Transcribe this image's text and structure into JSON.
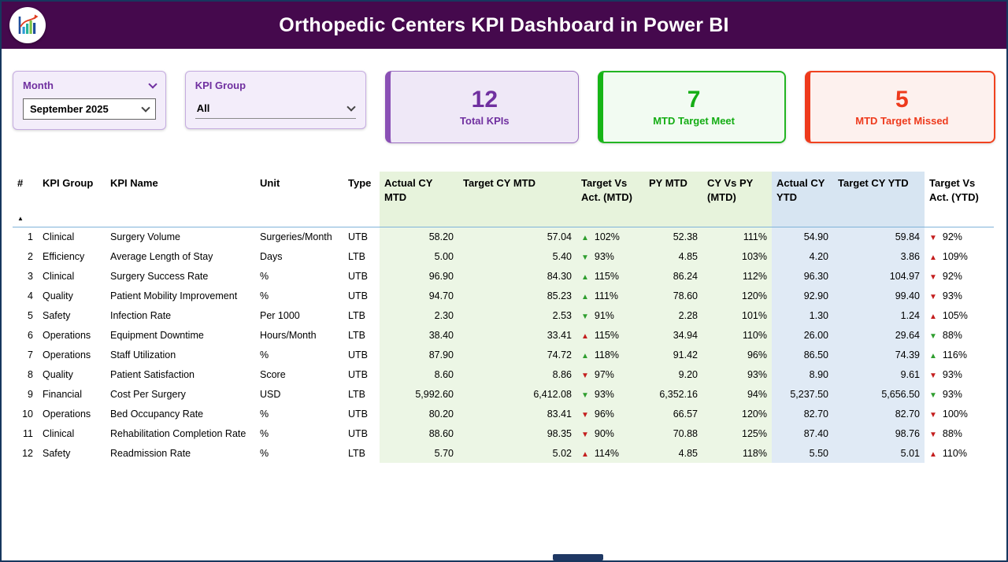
{
  "header": {
    "title": "Orthopedic Centers KPI Dashboard in Power BI"
  },
  "filters": {
    "month": {
      "label": "Month",
      "value": "September 2025"
    },
    "kpi_group": {
      "label": "KPI Group",
      "value": "All"
    }
  },
  "cards": [
    {
      "value": "12",
      "label": "Total KPIs",
      "accent": "#7030a0"
    },
    {
      "value": "7",
      "label": "MTD Target Meet",
      "accent": "#14ad14"
    },
    {
      "value": "5",
      "label": "MTD Target Missed",
      "accent": "#ee3a1c"
    }
  ],
  "colors": {
    "header_bg": "#45094d",
    "purple_accent": "#7030a0",
    "green_accent": "#14ad14",
    "red_accent": "#ee3a1c",
    "table_green_col": "#ecf6e5",
    "table_blue_col": "#e0eaf5",
    "arrow_good": "#2e9e2e",
    "arrow_bad": "#c41e1e"
  },
  "table": {
    "columns": [
      {
        "key": "num",
        "label": "#",
        "align": "right",
        "tint": "none",
        "type": "text",
        "sort": "asc"
      },
      {
        "key": "group",
        "label": "KPI Group",
        "align": "left",
        "tint": "none",
        "type": "text"
      },
      {
        "key": "name",
        "label": "KPI Name",
        "align": "left",
        "tint": "none",
        "type": "text"
      },
      {
        "key": "unit",
        "label": "Unit",
        "align": "left",
        "tint": "none",
        "type": "text"
      },
      {
        "key": "type",
        "label": "Type",
        "align": "left",
        "tint": "none",
        "type": "text"
      },
      {
        "key": "actual_mtd",
        "label": "Actual CY MTD",
        "align": "right",
        "tint": "green",
        "type": "num"
      },
      {
        "key": "target_mtd",
        "label": "Target CY MTD",
        "align": "right",
        "tint": "green",
        "type": "num"
      },
      {
        "key": "tva_mtd",
        "label": "Target Vs Act. (MTD)",
        "align": "left",
        "tint": "green",
        "type": "arrow"
      },
      {
        "key": "py_mtd",
        "label": "PY MTD",
        "align": "right",
        "tint": "green",
        "type": "num"
      },
      {
        "key": "cy_vs_py",
        "label": "CY Vs PY (MTD)",
        "align": "right",
        "tint": "green",
        "type": "num"
      },
      {
        "key": "actual_ytd",
        "label": "Actual CY YTD",
        "align": "right",
        "tint": "blue",
        "type": "num"
      },
      {
        "key": "target_ytd",
        "label": "Target CY YTD",
        "align": "right",
        "tint": "blue",
        "type": "num"
      },
      {
        "key": "tva_ytd",
        "label": "Target Vs Act. (YTD)",
        "align": "left",
        "tint": "none",
        "type": "arrow"
      }
    ],
    "rows": [
      {
        "num": "1",
        "group": "Clinical",
        "name": "Surgery Volume",
        "unit": "Surgeries/Month",
        "type": "UTB",
        "actual_mtd": "58.20",
        "target_mtd": "57.04",
        "tva_mtd": {
          "dir": "up",
          "status": "good",
          "value": "102%"
        },
        "py_mtd": "52.38",
        "cy_vs_py": "111%",
        "actual_ytd": "54.90",
        "target_ytd": "59.84",
        "tva_ytd": {
          "dir": "down",
          "status": "bad",
          "value": "92%"
        }
      },
      {
        "num": "2",
        "group": "Efficiency",
        "name": "Average Length of Stay",
        "unit": "Days",
        "type": "LTB",
        "actual_mtd": "5.00",
        "target_mtd": "5.40",
        "tva_mtd": {
          "dir": "down",
          "status": "good",
          "value": "93%"
        },
        "py_mtd": "4.85",
        "cy_vs_py": "103%",
        "actual_ytd": "4.20",
        "target_ytd": "3.86",
        "tva_ytd": {
          "dir": "up",
          "status": "bad",
          "value": "109%"
        }
      },
      {
        "num": "3",
        "group": "Clinical",
        "name": "Surgery Success Rate",
        "unit": "%",
        "type": "UTB",
        "actual_mtd": "96.90",
        "target_mtd": "84.30",
        "tva_mtd": {
          "dir": "up",
          "status": "good",
          "value": "115%"
        },
        "py_mtd": "86.24",
        "cy_vs_py": "112%",
        "actual_ytd": "96.30",
        "target_ytd": "104.97",
        "tva_ytd": {
          "dir": "down",
          "status": "bad",
          "value": "92%"
        }
      },
      {
        "num": "4",
        "group": "Quality",
        "name": "Patient Mobility Improvement",
        "unit": "%",
        "type": "UTB",
        "actual_mtd": "94.70",
        "target_mtd": "85.23",
        "tva_mtd": {
          "dir": "up",
          "status": "good",
          "value": "111%"
        },
        "py_mtd": "78.60",
        "cy_vs_py": "120%",
        "actual_ytd": "92.90",
        "target_ytd": "99.40",
        "tva_ytd": {
          "dir": "down",
          "status": "bad",
          "value": "93%"
        }
      },
      {
        "num": "5",
        "group": "Safety",
        "name": "Infection Rate",
        "unit": "Per 1000",
        "type": "LTB",
        "actual_mtd": "2.30",
        "target_mtd": "2.53",
        "tva_mtd": {
          "dir": "down",
          "status": "good",
          "value": "91%"
        },
        "py_mtd": "2.28",
        "cy_vs_py": "101%",
        "actual_ytd": "1.30",
        "target_ytd": "1.24",
        "tva_ytd": {
          "dir": "up",
          "status": "bad",
          "value": "105%"
        }
      },
      {
        "num": "6",
        "group": "Operations",
        "name": "Equipment Downtime",
        "unit": "Hours/Month",
        "type": "LTB",
        "actual_mtd": "38.40",
        "target_mtd": "33.41",
        "tva_mtd": {
          "dir": "up",
          "status": "bad",
          "value": "115%"
        },
        "py_mtd": "34.94",
        "cy_vs_py": "110%",
        "actual_ytd": "26.00",
        "target_ytd": "29.64",
        "tva_ytd": {
          "dir": "down",
          "status": "good",
          "value": "88%"
        }
      },
      {
        "num": "7",
        "group": "Operations",
        "name": "Staff Utilization",
        "unit": "%",
        "type": "UTB",
        "actual_mtd": "87.90",
        "target_mtd": "74.72",
        "tva_mtd": {
          "dir": "up",
          "status": "good",
          "value": "118%"
        },
        "py_mtd": "91.42",
        "cy_vs_py": "96%",
        "actual_ytd": "86.50",
        "target_ytd": "74.39",
        "tva_ytd": {
          "dir": "up",
          "status": "good",
          "value": "116%"
        }
      },
      {
        "num": "8",
        "group": "Quality",
        "name": "Patient Satisfaction",
        "unit": "Score",
        "type": "UTB",
        "actual_mtd": "8.60",
        "target_mtd": "8.86",
        "tva_mtd": {
          "dir": "down",
          "status": "bad",
          "value": "97%"
        },
        "py_mtd": "9.20",
        "cy_vs_py": "93%",
        "actual_ytd": "8.90",
        "target_ytd": "9.61",
        "tva_ytd": {
          "dir": "down",
          "status": "bad",
          "value": "93%"
        }
      },
      {
        "num": "9",
        "group": "Financial",
        "name": "Cost Per Surgery",
        "unit": "USD",
        "type": "LTB",
        "actual_mtd": "5,992.60",
        "target_mtd": "6,412.08",
        "tva_mtd": {
          "dir": "down",
          "status": "good",
          "value": "93%"
        },
        "py_mtd": "6,352.16",
        "cy_vs_py": "94%",
        "actual_ytd": "5,237.50",
        "target_ytd": "5,656.50",
        "tva_ytd": {
          "dir": "down",
          "status": "good",
          "value": "93%"
        }
      },
      {
        "num": "10",
        "group": "Operations",
        "name": "Bed Occupancy Rate",
        "unit": "%",
        "type": "UTB",
        "actual_mtd": "80.20",
        "target_mtd": "83.41",
        "tva_mtd": {
          "dir": "down",
          "status": "bad",
          "value": "96%"
        },
        "py_mtd": "66.57",
        "cy_vs_py": "120%",
        "actual_ytd": "82.70",
        "target_ytd": "82.70",
        "tva_ytd": {
          "dir": "down",
          "status": "bad",
          "value": "100%"
        }
      },
      {
        "num": "11",
        "group": "Clinical",
        "name": "Rehabilitation Completion Rate",
        "unit": "%",
        "type": "UTB",
        "actual_mtd": "88.60",
        "target_mtd": "98.35",
        "tva_mtd": {
          "dir": "down",
          "status": "bad",
          "value": "90%"
        },
        "py_mtd": "70.88",
        "cy_vs_py": "125%",
        "actual_ytd": "87.40",
        "target_ytd": "98.76",
        "tva_ytd": {
          "dir": "down",
          "status": "bad",
          "value": "88%"
        }
      },
      {
        "num": "12",
        "group": "Safety",
        "name": "Readmission Rate",
        "unit": "%",
        "type": "LTB",
        "actual_mtd": "5.70",
        "target_mtd": "5.02",
        "tva_mtd": {
          "dir": "up",
          "status": "bad",
          "value": "114%"
        },
        "py_mtd": "4.85",
        "cy_vs_py": "118%",
        "actual_ytd": "5.50",
        "target_ytd": "5.01",
        "tva_ytd": {
          "dir": "up",
          "status": "bad",
          "value": "110%"
        }
      }
    ]
  }
}
